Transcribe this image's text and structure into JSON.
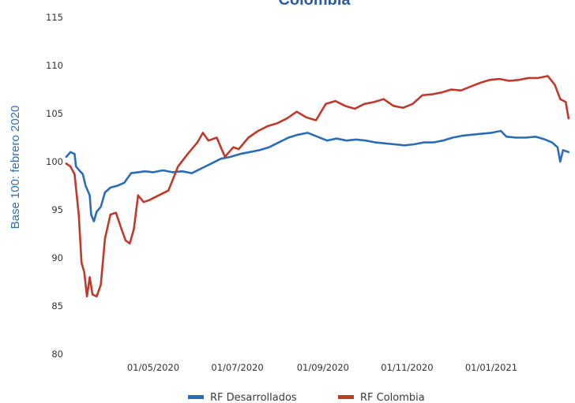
{
  "chart_data": {
    "type": "line",
    "title": "Colombia",
    "ylabel": "Base 100: febrero 2020",
    "xlabel": "",
    "ylim": [
      80,
      115
    ],
    "yticks": [
      80,
      85,
      90,
      95,
      100,
      105,
      110,
      115
    ],
    "xlim": [
      "2020-02-28",
      "2021-02-26"
    ],
    "xticks": [
      {
        "date": "2020-05-01",
        "label": "01/05/2020"
      },
      {
        "date": "2020-07-01",
        "label": "01/07/2020"
      },
      {
        "date": "2020-09-01",
        "label": "01/09/2020"
      },
      {
        "date": "2020-11-01",
        "label": "01/11/2020"
      },
      {
        "date": "2021-01-01",
        "label": "01/01/2021"
      }
    ],
    "grid": false,
    "legend_position": "bottom",
    "series": [
      {
        "name": "RF Desarrollados",
        "color": "#2a6db5",
        "points": [
          [
            "2020-02-28",
            100.5
          ],
          [
            "2020-03-02",
            101.0
          ],
          [
            "2020-03-05",
            100.8
          ],
          [
            "2020-03-06",
            99.5
          ],
          [
            "2020-03-09",
            99.0
          ],
          [
            "2020-03-11",
            98.7
          ],
          [
            "2020-03-13",
            97.5
          ],
          [
            "2020-03-16",
            96.5
          ],
          [
            "2020-03-17",
            94.5
          ],
          [
            "2020-03-19",
            93.8
          ],
          [
            "2020-03-21",
            94.8
          ],
          [
            "2020-03-24",
            95.3
          ],
          [
            "2020-03-27",
            96.8
          ],
          [
            "2020-03-31",
            97.3
          ],
          [
            "2020-04-05",
            97.5
          ],
          [
            "2020-04-10",
            97.8
          ],
          [
            "2020-04-15",
            98.8
          ],
          [
            "2020-04-20",
            98.9
          ],
          [
            "2020-04-25",
            99.0
          ],
          [
            "2020-05-01",
            98.9
          ],
          [
            "2020-05-08",
            99.1
          ],
          [
            "2020-05-15",
            98.9
          ],
          [
            "2020-05-22",
            99.0
          ],
          [
            "2020-05-29",
            98.8
          ],
          [
            "2020-06-05",
            99.3
          ],
          [
            "2020-06-12",
            99.8
          ],
          [
            "2020-06-19",
            100.3
          ],
          [
            "2020-06-26",
            100.5
          ],
          [
            "2020-07-03",
            100.8
          ],
          [
            "2020-07-10",
            101.0
          ],
          [
            "2020-07-17",
            101.2
          ],
          [
            "2020-07-24",
            101.5
          ],
          [
            "2020-07-31",
            102.0
          ],
          [
            "2020-08-07",
            102.5
          ],
          [
            "2020-08-14",
            102.8
          ],
          [
            "2020-08-21",
            103.0
          ],
          [
            "2020-08-28",
            102.6
          ],
          [
            "2020-09-04",
            102.2
          ],
          [
            "2020-09-11",
            102.4
          ],
          [
            "2020-09-18",
            102.2
          ],
          [
            "2020-09-25",
            102.3
          ],
          [
            "2020-10-02",
            102.2
          ],
          [
            "2020-10-09",
            102.0
          ],
          [
            "2020-10-16",
            101.9
          ],
          [
            "2020-10-23",
            101.8
          ],
          [
            "2020-10-30",
            101.7
          ],
          [
            "2020-11-06",
            101.8
          ],
          [
            "2020-11-13",
            102.0
          ],
          [
            "2020-11-20",
            102.0
          ],
          [
            "2020-11-27",
            102.2
          ],
          [
            "2020-12-04",
            102.5
          ],
          [
            "2020-12-11",
            102.7
          ],
          [
            "2020-12-18",
            102.8
          ],
          [
            "2020-12-25",
            102.9
          ],
          [
            "2021-01-01",
            103.0
          ],
          [
            "2021-01-08",
            103.2
          ],
          [
            "2021-01-12",
            102.6
          ],
          [
            "2021-01-19",
            102.5
          ],
          [
            "2021-01-26",
            102.5
          ],
          [
            "2021-02-02",
            102.6
          ],
          [
            "2021-02-09",
            102.3
          ],
          [
            "2021-02-14",
            102.0
          ],
          [
            "2021-02-18",
            101.5
          ],
          [
            "2021-02-20",
            100.0
          ],
          [
            "2021-02-22",
            101.2
          ],
          [
            "2021-02-26",
            101.0
          ]
        ]
      },
      {
        "name": "RF Colombia",
        "color": "#c0392b",
        "points": [
          [
            "2020-02-28",
            99.8
          ],
          [
            "2020-03-02",
            99.5
          ],
          [
            "2020-03-05",
            98.7
          ],
          [
            "2020-03-08",
            94.5
          ],
          [
            "2020-03-10",
            89.5
          ],
          [
            "2020-03-12",
            88.5
          ],
          [
            "2020-03-14",
            86.0
          ],
          [
            "2020-03-16",
            88.0
          ],
          [
            "2020-03-18",
            86.2
          ],
          [
            "2020-03-21",
            86.0
          ],
          [
            "2020-03-24",
            87.2
          ],
          [
            "2020-03-27",
            92.0
          ],
          [
            "2020-03-31",
            94.5
          ],
          [
            "2020-04-04",
            94.7
          ],
          [
            "2020-04-08",
            93.0
          ],
          [
            "2020-04-11",
            91.8
          ],
          [
            "2020-04-14",
            91.5
          ],
          [
            "2020-04-17",
            93.0
          ],
          [
            "2020-04-20",
            96.5
          ],
          [
            "2020-04-24",
            95.8
          ],
          [
            "2020-04-28",
            96.0
          ],
          [
            "2020-05-05",
            96.5
          ],
          [
            "2020-05-12",
            97.0
          ],
          [
            "2020-05-19",
            99.5
          ],
          [
            "2020-05-26",
            100.8
          ],
          [
            "2020-06-02",
            102.0
          ],
          [
            "2020-06-06",
            103.0
          ],
          [
            "2020-06-10",
            102.2
          ],
          [
            "2020-06-16",
            102.5
          ],
          [
            "2020-06-22",
            100.5
          ],
          [
            "2020-06-28",
            101.5
          ],
          [
            "2020-07-02",
            101.3
          ],
          [
            "2020-07-09",
            102.5
          ],
          [
            "2020-07-16",
            103.2
          ],
          [
            "2020-07-23",
            103.7
          ],
          [
            "2020-07-30",
            104.0
          ],
          [
            "2020-08-06",
            104.5
          ],
          [
            "2020-08-13",
            105.2
          ],
          [
            "2020-08-20",
            104.6
          ],
          [
            "2020-08-27",
            104.3
          ],
          [
            "2020-09-03",
            106.0
          ],
          [
            "2020-09-10",
            106.3
          ],
          [
            "2020-09-17",
            105.8
          ],
          [
            "2020-09-24",
            105.5
          ],
          [
            "2020-10-01",
            106.0
          ],
          [
            "2020-10-08",
            106.2
          ],
          [
            "2020-10-15",
            106.5
          ],
          [
            "2020-10-22",
            105.8
          ],
          [
            "2020-10-29",
            105.6
          ],
          [
            "2020-11-05",
            106.0
          ],
          [
            "2020-11-12",
            106.9
          ],
          [
            "2020-11-19",
            107.0
          ],
          [
            "2020-11-26",
            107.2
          ],
          [
            "2020-12-03",
            107.5
          ],
          [
            "2020-12-10",
            107.4
          ],
          [
            "2020-12-17",
            107.8
          ],
          [
            "2020-12-24",
            108.2
          ],
          [
            "2020-12-31",
            108.5
          ],
          [
            "2021-01-07",
            108.6
          ],
          [
            "2021-01-14",
            108.4
          ],
          [
            "2021-01-21",
            108.5
          ],
          [
            "2021-01-28",
            108.7
          ],
          [
            "2021-02-04",
            108.7
          ],
          [
            "2021-02-11",
            108.9
          ],
          [
            "2021-02-16",
            108.0
          ],
          [
            "2021-02-20",
            106.5
          ],
          [
            "2021-02-24",
            106.2
          ],
          [
            "2021-02-26",
            104.5
          ]
        ]
      }
    ]
  }
}
